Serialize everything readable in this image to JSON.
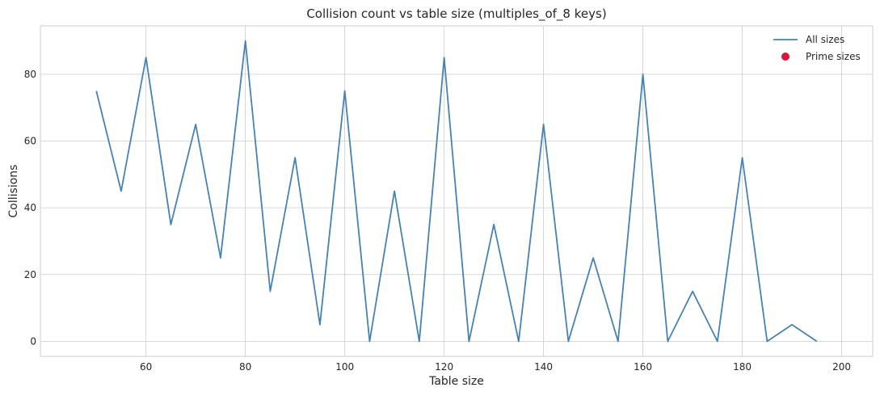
{
  "chart_data": {
    "type": "line",
    "title": "Collision count vs table size (multiples_of_8 keys)",
    "xlabel": "Table size",
    "ylabel": "Collisions",
    "xlim": [
      38.75,
      206.25
    ],
    "ylim": [
      -4.5,
      94.5
    ],
    "xticks": [
      60,
      80,
      100,
      120,
      140,
      160,
      180,
      200
    ],
    "yticks": [
      0,
      20,
      40,
      60,
      80
    ],
    "grid": true,
    "legend_position": "top-right",
    "series": [
      {
        "name": "All sizes",
        "color": "#4682b4",
        "x": [
          50,
          55,
          60,
          65,
          70,
          75,
          80,
          85,
          90,
          95,
          100,
          105,
          110,
          115,
          120,
          125,
          130,
          135,
          140,
          145,
          150,
          155,
          160,
          165,
          170,
          175,
          180,
          185,
          190,
          195
        ],
        "y": [
          75,
          45,
          85,
          35,
          65,
          25,
          90,
          15,
          55,
          5,
          75,
          0,
          45,
          0,
          85,
          0,
          35,
          0,
          65,
          0,
          25,
          0,
          80,
          0,
          15,
          0,
          55,
          0,
          5,
          0
        ]
      },
      {
        "name": "Prime sizes",
        "color": "#dc143c",
        "marker": "circle",
        "x": [],
        "y": []
      }
    ]
  }
}
